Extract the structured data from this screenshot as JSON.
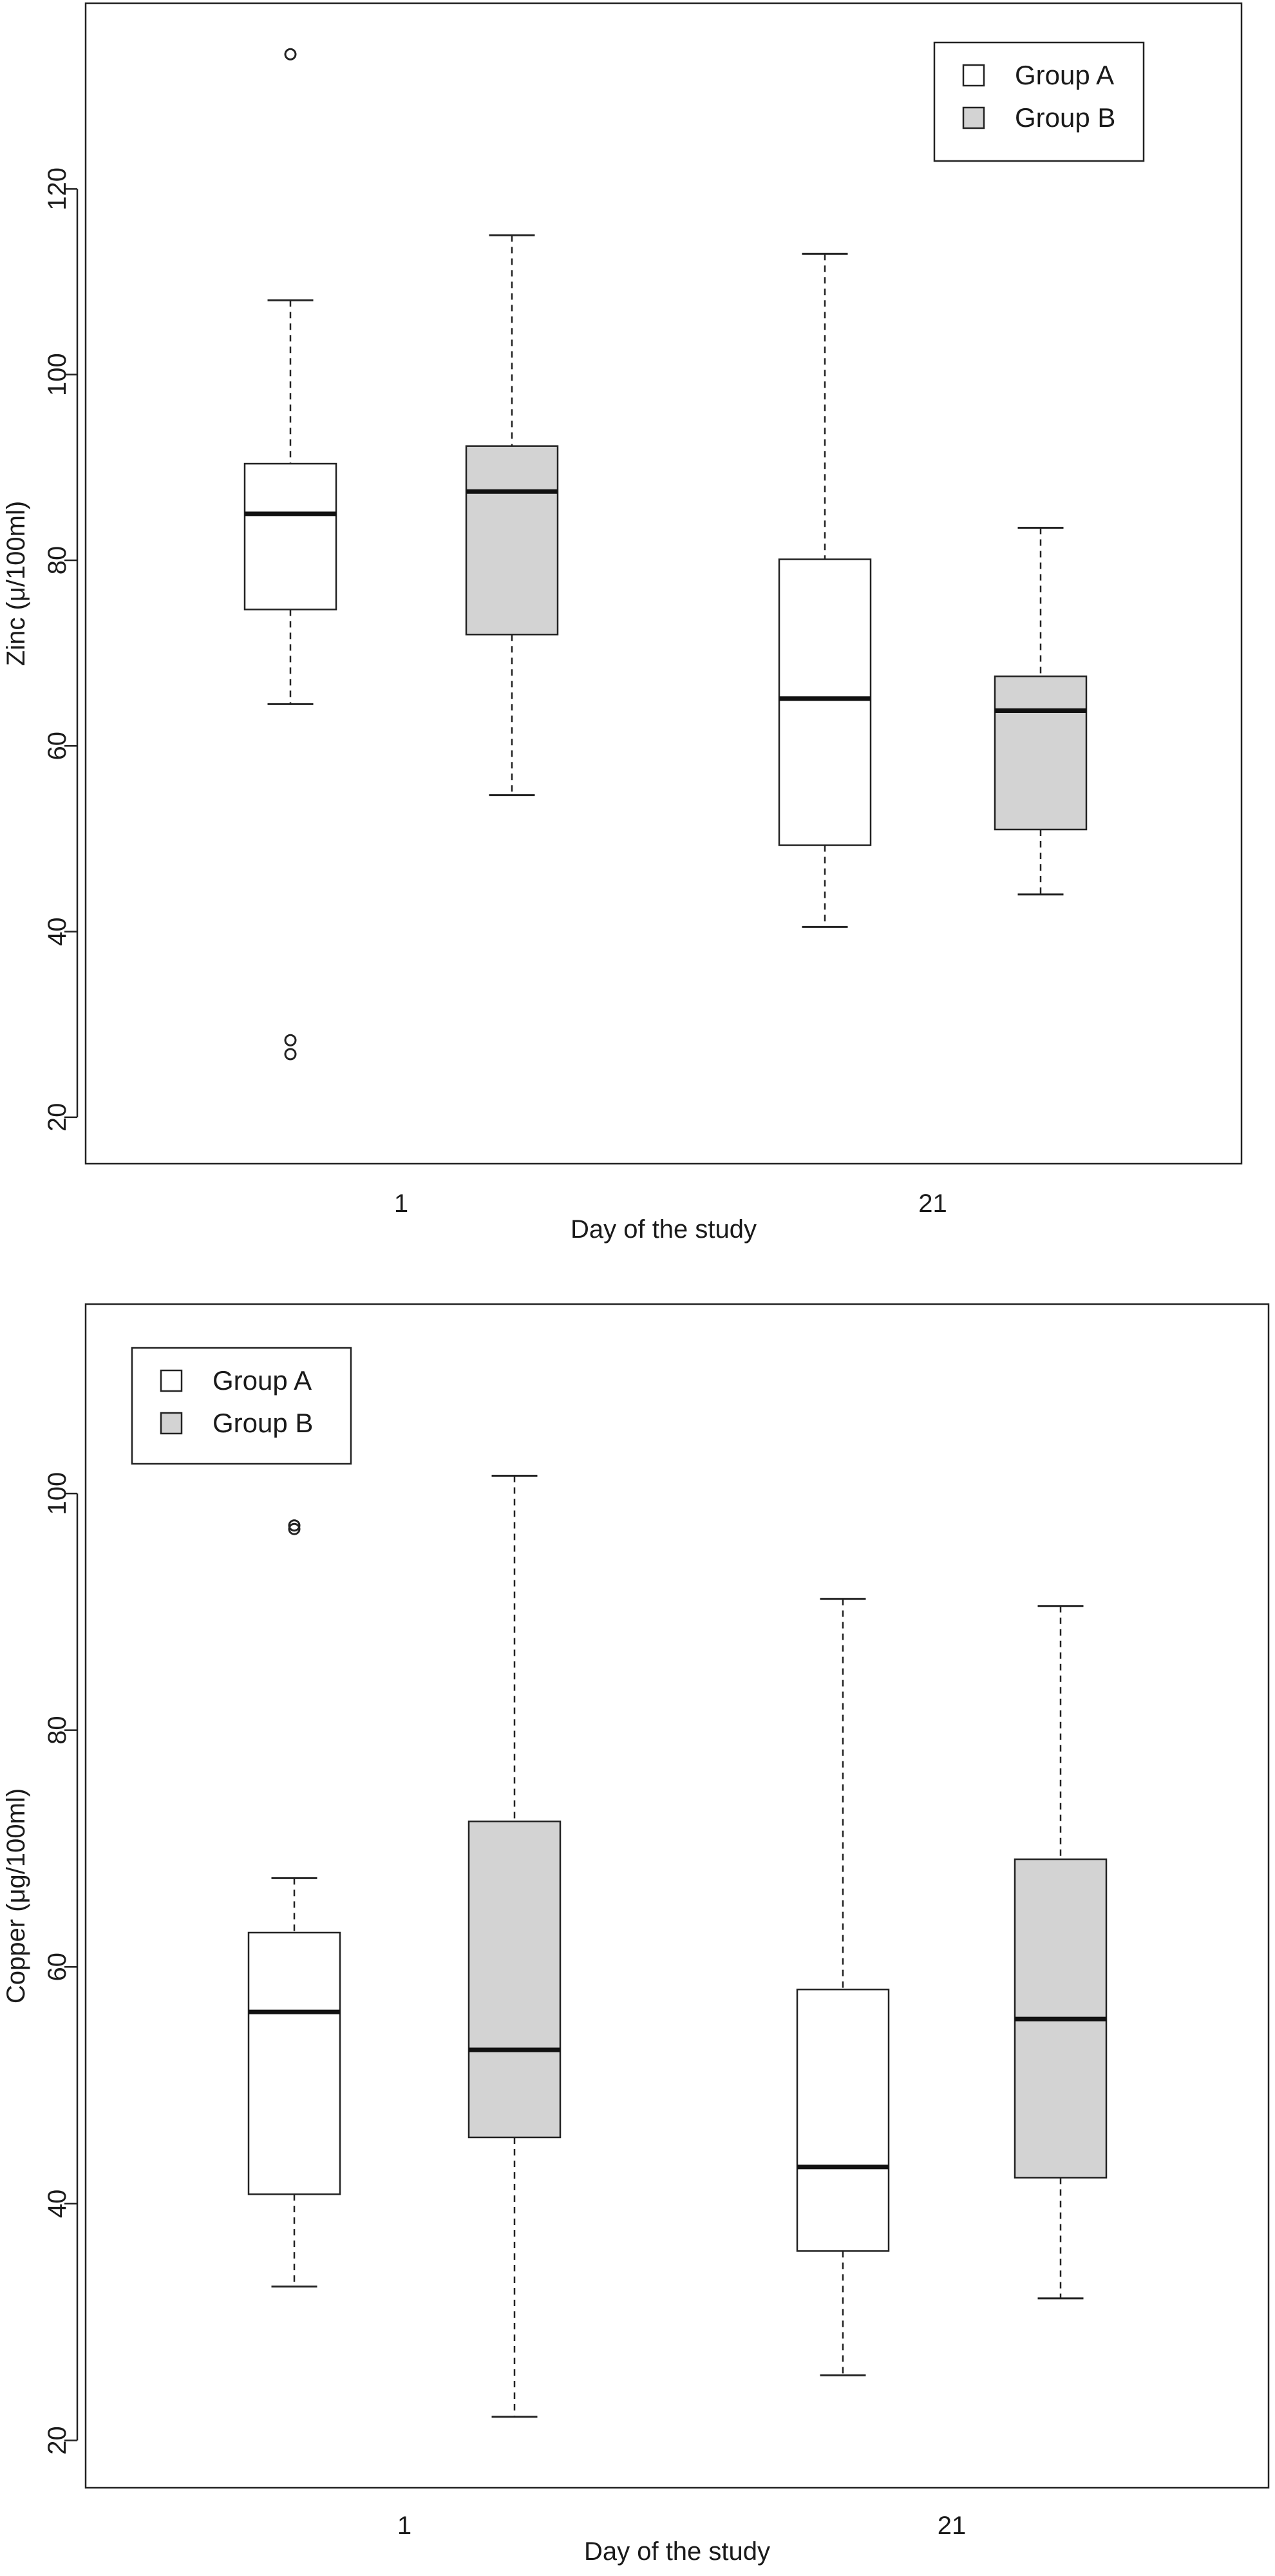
{
  "chart_data": [
    {
      "type": "boxplot",
      "xlabel": "Day of the study",
      "ylabel": "Zinc (μ/100ml)",
      "ylim": [
        15,
        140
      ],
      "yticks": [
        20,
        40,
        60,
        80,
        100,
        120
      ],
      "categories": [
        "1",
        "21"
      ],
      "legend": {
        "placement": "top-right"
      },
      "series": [
        {
          "name": "Group A",
          "color": "#ffffff",
          "boxes": [
            {
              "category": "1",
              "whisker_low": 64.5,
              "q1": 74.7,
              "median": 85.0,
              "q3": 90.4,
              "whisker_high": 108.0,
              "outliers": [
                134.5,
                28.3,
                26.8
              ]
            },
            {
              "category": "21",
              "whisker_low": 40.5,
              "q1": 49.3,
              "median": 65.1,
              "q3": 80.1,
              "whisker_high": 113.0,
              "outliers": []
            }
          ]
        },
        {
          "name": "Group B",
          "color": "#d3d3d3",
          "boxes": [
            {
              "category": "1",
              "whisker_low": 54.7,
              "q1": 72.0,
              "median": 87.4,
              "q3": 92.3,
              "whisker_high": 115.0,
              "outliers": []
            },
            {
              "category": "21",
              "whisker_low": 44.0,
              "q1": 51.0,
              "median": 63.8,
              "q3": 67.5,
              "whisker_high": 83.5,
              "outliers": []
            }
          ]
        }
      ]
    },
    {
      "type": "boxplot",
      "xlabel": "Day of the study",
      "ylabel": "Copper (μg/100ml)",
      "ylim": [
        16,
        116
      ],
      "yticks": [
        20,
        40,
        60,
        80,
        100
      ],
      "categories": [
        "1",
        "21"
      ],
      "legend": {
        "placement": "top-left"
      },
      "series": [
        {
          "name": "Group A",
          "color": "#ffffff",
          "boxes": [
            {
              "category": "1",
              "whisker_low": 33.0,
              "q1": 40.8,
              "median": 56.2,
              "q3": 62.9,
              "whisker_high": 67.5,
              "outliers": [
                97.3,
                97.0
              ]
            },
            {
              "category": "21",
              "whisker_low": 25.5,
              "q1": 36.0,
              "median": 43.1,
              "q3": 58.1,
              "whisker_high": 91.1,
              "outliers": []
            }
          ]
        },
        {
          "name": "Group B",
          "color": "#d3d3d3",
          "boxes": [
            {
              "category": "1",
              "whisker_low": 22.0,
              "q1": 45.6,
              "median": 53.0,
              "q3": 72.3,
              "whisker_high": 101.5,
              "outliers": []
            },
            {
              "category": "21",
              "whisker_low": 32.0,
              "q1": 42.2,
              "median": 55.6,
              "q3": 69.1,
              "whisker_high": 90.5,
              "outliers": []
            }
          ]
        }
      ]
    }
  ]
}
